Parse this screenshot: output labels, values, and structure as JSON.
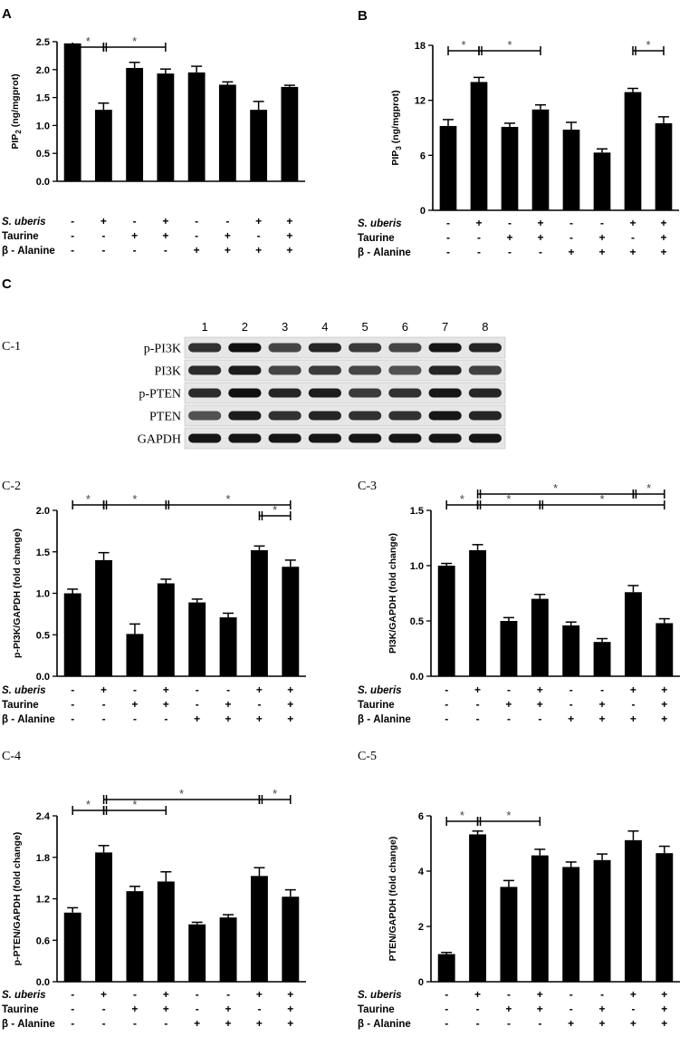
{
  "panel_labels": {
    "A": "A",
    "B": "B",
    "C": "C"
  },
  "sub_labels": {
    "c1": "C-1",
    "c2": "C-2",
    "c3": "C-3",
    "c4": "C-4",
    "c5": "C-5"
  },
  "conditions": {
    "row_labels": [
      "S. uberis",
      "Taurine",
      "β - Alanine"
    ],
    "s_uberis": [
      "-",
      "+",
      "-",
      "+",
      "-",
      "-",
      "+",
      "+"
    ],
    "taurine": [
      "-",
      "-",
      "+",
      "+",
      "-",
      "+",
      "-",
      "+"
    ],
    "beta_alanine": [
      "-",
      "-",
      "-",
      "-",
      "+",
      "+",
      "+",
      "+"
    ]
  },
  "blot": {
    "lane_numbers": [
      "1",
      "2",
      "3",
      "4",
      "5",
      "6",
      "7",
      "8"
    ],
    "rows": [
      "p-PI3K",
      "PI3K",
      "p-PTEN",
      "PTEN",
      "GAPDH"
    ]
  },
  "chart_data": [
    {
      "id": "A",
      "type": "bar",
      "ylabel": "PIP2 (ng/mgprot)",
      "ylim": [
        0,
        2.5
      ],
      "yticks": [
        "0.0",
        "0.5",
        "1.0",
        "1.5",
        "2.0",
        "2.5"
      ],
      "values": [
        2.47,
        1.28,
        2.03,
        1.93,
        1.95,
        1.73,
        1.28,
        1.69
      ],
      "errors": [
        0.0,
        0.12,
        0.1,
        0.08,
        0.11,
        0.05,
        0.15,
        0.03
      ],
      "significance": [
        {
          "from": 1,
          "to": 2,
          "level": 0,
          "label": "*"
        },
        {
          "from": 2,
          "to": 4,
          "level": 0,
          "label": "*"
        }
      ]
    },
    {
      "id": "B",
      "type": "bar",
      "ylabel": "PIP3 (ng/mgprot)",
      "ylim": [
        0,
        18
      ],
      "yticks": [
        "0",
        "6",
        "12",
        "18"
      ],
      "values": [
        9.2,
        14.0,
        9.1,
        11.0,
        8.8,
        6.3,
        12.9,
        9.5
      ],
      "errors": [
        0.7,
        0.5,
        0.4,
        0.5,
        0.8,
        0.4,
        0.4,
        0.7
      ],
      "significance": [
        {
          "from": 1,
          "to": 2,
          "level": 0,
          "label": "*"
        },
        {
          "from": 2,
          "to": 4,
          "level": 0,
          "label": "*"
        },
        {
          "from": 7,
          "to": 8,
          "level": 0,
          "label": "*"
        }
      ]
    },
    {
      "id": "C-2",
      "type": "bar",
      "ylabel": "p-PI3K/GAPDH (fold change)",
      "ylim": [
        0,
        2.0
      ],
      "yticks": [
        "0.0",
        "0.5",
        "1.0",
        "1.5",
        "2.0"
      ],
      "values": [
        1.0,
        1.4,
        0.51,
        1.12,
        0.89,
        0.71,
        1.52,
        1.32
      ],
      "errors": [
        0.05,
        0.09,
        0.12,
        0.05,
        0.04,
        0.05,
        0.05,
        0.08
      ],
      "significance": [
        {
          "from": 1,
          "to": 2,
          "level": 1,
          "label": "*"
        },
        {
          "from": 2,
          "to": 4,
          "level": 1,
          "label": "*"
        },
        {
          "from": 4,
          "to": 8,
          "level": 1,
          "label": "*"
        },
        {
          "from": 7,
          "to": 8,
          "level": 0,
          "label": "*"
        }
      ]
    },
    {
      "id": "C-3",
      "type": "bar",
      "ylabel": "PI3K/GAPDH (fold change)",
      "ylim": [
        0,
        1.5
      ],
      "yticks": [
        "0.0",
        "0.5",
        "1.0",
        "1.5"
      ],
      "values": [
        1.0,
        1.14,
        0.5,
        0.7,
        0.46,
        0.31,
        0.76,
        0.48
      ],
      "errors": [
        0.02,
        0.05,
        0.03,
        0.04,
        0.03,
        0.03,
        0.06,
        0.04
      ],
      "significance": [
        {
          "from": 1,
          "to": 2,
          "level": 1,
          "label": "*"
        },
        {
          "from": 2,
          "to": 4,
          "level": 1,
          "label": "*"
        },
        {
          "from": 4,
          "to": 8,
          "level": 1,
          "label": "*"
        },
        {
          "from": 2,
          "to": 7,
          "level": 2,
          "label": "*"
        },
        {
          "from": 7,
          "to": 8,
          "level": 2,
          "label": "*"
        }
      ]
    },
    {
      "id": "C-4",
      "type": "bar",
      "ylabel": "p-PTEN/GAPDH (fold change)",
      "ylim": [
        0,
        2.4
      ],
      "yticks": [
        "0.0",
        "0.6",
        "1.2",
        "1.8",
        "2.4"
      ],
      "values": [
        1.0,
        1.87,
        1.31,
        1.45,
        0.83,
        0.93,
        1.53,
        1.23
      ],
      "errors": [
        0.07,
        0.1,
        0.07,
        0.14,
        0.03,
        0.04,
        0.12,
        0.1
      ],
      "significance": [
        {
          "from": 1,
          "to": 2,
          "level": 1,
          "label": "*"
        },
        {
          "from": 2,
          "to": 4,
          "level": 1,
          "label": "*"
        },
        {
          "from": 2,
          "to": 7,
          "level": 2,
          "label": "*"
        },
        {
          "from": 7,
          "to": 8,
          "level": 2,
          "label": "*"
        }
      ]
    },
    {
      "id": "C-5",
      "type": "bar",
      "ylabel": "PTEN/GAPDH (fold change)",
      "ylim": [
        0,
        6
      ],
      "yticks": [
        "0",
        "2",
        "4",
        "6"
      ],
      "values": [
        1.0,
        5.33,
        3.43,
        4.57,
        4.15,
        4.4,
        5.12,
        4.65
      ],
      "errors": [
        0.06,
        0.12,
        0.23,
        0.22,
        0.18,
        0.22,
        0.33,
        0.25
      ],
      "significance": [
        {
          "from": 1,
          "to": 2,
          "level": 0,
          "label": "*"
        },
        {
          "from": 2,
          "to": 4,
          "level": 0,
          "label": "*"
        }
      ]
    }
  ]
}
